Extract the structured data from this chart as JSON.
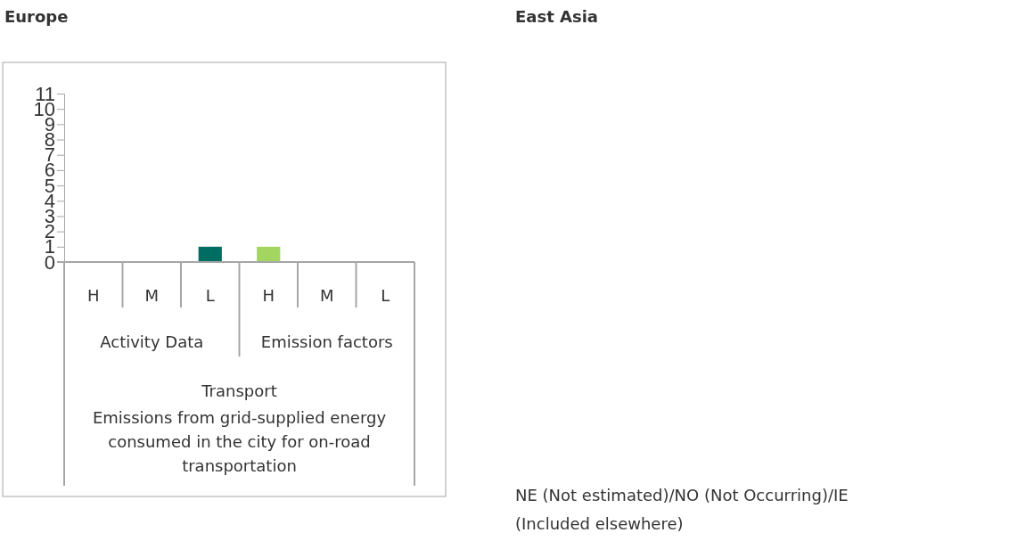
{
  "chart_data": [
    {
      "type": "bar",
      "title": "Europe",
      "categories": [
        "H",
        "M",
        "L",
        "H",
        "M",
        "L"
      ],
      "values": [
        0,
        0,
        1,
        1,
        0,
        0
      ],
      "colors": [
        "#006d63",
        "#006d63",
        "#006d63",
        "#a2d660",
        "#a2d660",
        "#a2d660"
      ],
      "ylim": [
        0,
        11
      ],
      "yticks": [
        0,
        1,
        2,
        3,
        4,
        5,
        6,
        7,
        8,
        9,
        10,
        11
      ],
      "grid": false,
      "annotations": [
        "Activity Data",
        "Emission factors",
        "Transport",
        "Emissions from grid-supplied energy consumed in the city for on-road transportation"
      ]
    },
    {
      "type": "other",
      "title": "East Asia",
      "annotations": [
        "NE (Not estimated)/NO (Not Occurring)/IE (Included elsewhere)"
      ]
    }
  ]
}
